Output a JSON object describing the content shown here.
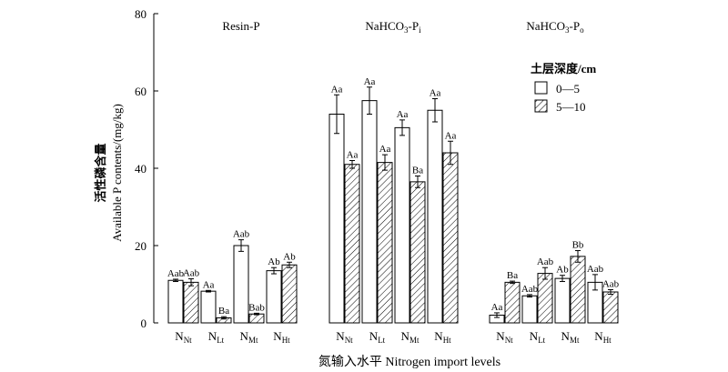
{
  "chart_data": {
    "type": "bar",
    "ylabel_zh": "活性磷含量",
    "ylabel": "Available P contents/(mg/kg)",
    "xlabel": "氮输入水平 Nitrogen import levels",
    "ylim": [
      0,
      80
    ],
    "yticks": [
      "0",
      "20",
      "40",
      "60",
      "80"
    ],
    "ytick_values": [
      0,
      20,
      40,
      60,
      80
    ],
    "legend": {
      "title": "土层深度/cm",
      "placement": "right",
      "entries": [
        "0—5",
        "5—10"
      ]
    },
    "series_styles": [
      {
        "name": "0—5",
        "fill": "white"
      },
      {
        "name": "5—10",
        "fill": "hatched"
      }
    ],
    "panels": [
      {
        "title": "Resin-P",
        "categories": [
          {
            "base": "N",
            "sub": "Nt"
          },
          {
            "base": "N",
            "sub": "Lt"
          },
          {
            "base": "N",
            "sub": "Mt"
          },
          {
            "base": "N",
            "sub": "Ht"
          }
        ],
        "series": [
          {
            "name": "0—5",
            "values": [
              11.0,
              8.2,
              20.0,
              13.5
            ],
            "errors": [
              0.3,
              0.2,
              1.5,
              0.8
            ],
            "labels": [
              "Aab",
              "Aa",
              "Aab",
              "Ab"
            ]
          },
          {
            "name": "5—10",
            "values": [
              10.5,
              1.3,
              2.3,
              15.0
            ],
            "errors": [
              0.9,
              0.3,
              0.2,
              0.7
            ],
            "labels": [
              "Aab",
              "Ba",
              "Bab",
              "Ab"
            ]
          }
        ]
      },
      {
        "title": "NaHCO3-Pi",
        "categories": [
          {
            "base": "N",
            "sub": "Nt"
          },
          {
            "base": "N",
            "sub": "Lt"
          },
          {
            "base": "N",
            "sub": "Mt"
          },
          {
            "base": "N",
            "sub": "Ht"
          }
        ],
        "series": [
          {
            "name": "0—5",
            "values": [
              54.0,
              57.5,
              50.5,
              55.0
            ],
            "errors": [
              5.0,
              3.5,
              2.0,
              3.0
            ],
            "labels": [
              "Aa",
              "Aa",
              "Aa",
              "Aa"
            ]
          },
          {
            "name": "5—10",
            "values": [
              41.0,
              41.5,
              36.5,
              44.0
            ],
            "errors": [
              1.0,
              2.0,
              1.5,
              3.0
            ],
            "labels": [
              "Aa",
              "Aa",
              "Ba",
              "Aa"
            ]
          }
        ]
      },
      {
        "title": "NaHCO3-Po",
        "categories": [
          {
            "base": "N",
            "sub": "Nt"
          },
          {
            "base": "N",
            "sub": "Lt"
          },
          {
            "base": "N",
            "sub": "Mt"
          },
          {
            "base": "N",
            "sub": "Ht"
          }
        ],
        "series": [
          {
            "name": "0—5",
            "values": [
              2.0,
              7.0,
              11.5,
              10.5
            ],
            "errors": [
              0.6,
              0.3,
              0.8,
              2.0
            ],
            "labels": [
              "Aa",
              "Aab",
              "Ab",
              "Aab"
            ]
          },
          {
            "name": "5—10",
            "values": [
              10.5,
              12.8,
              17.2,
              8.0
            ],
            "errors": [
              0.3,
              1.5,
              1.5,
              0.6
            ],
            "labels": [
              "Ba",
              "Aab",
              "Bb",
              "Aab"
            ]
          }
        ]
      }
    ]
  }
}
